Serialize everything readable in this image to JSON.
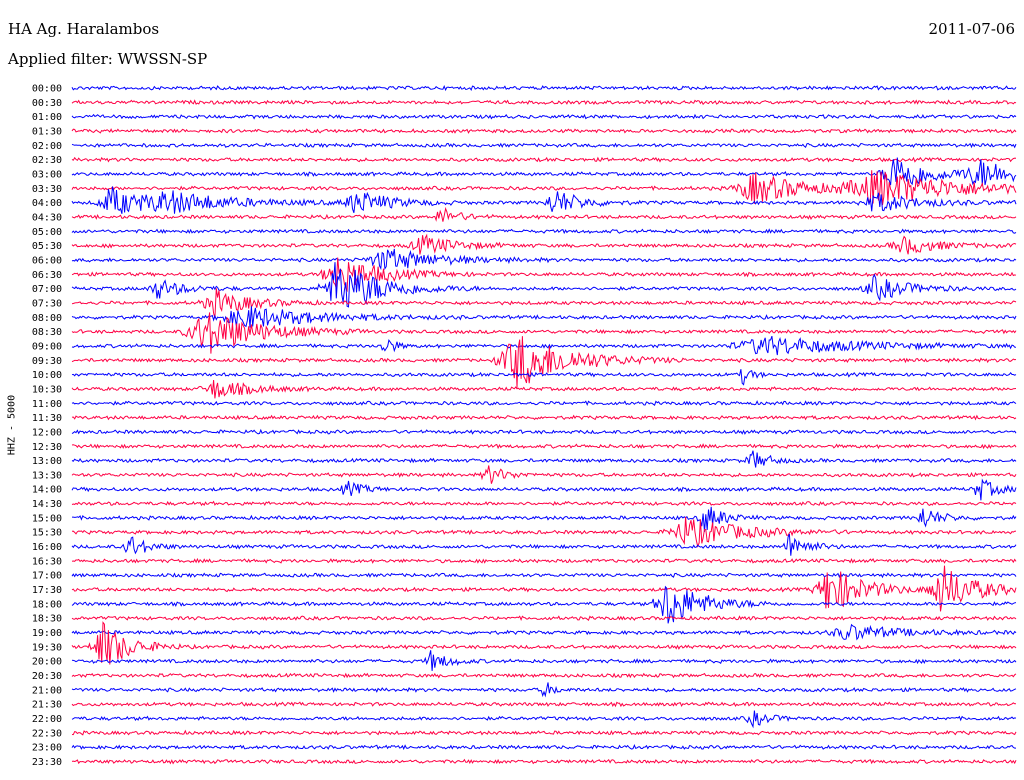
{
  "header": {
    "station": "HA Ag. Haralambos",
    "date": "2011-07-06",
    "filter": "Applied filter: WWSSN-SP"
  },
  "chart_data": {
    "type": "line",
    "title": "HA Ag. Haralambos",
    "ylabel": "HHZ - 5000",
    "row_labels": [
      "00:00",
      "00:30",
      "01:00",
      "01:30",
      "02:00",
      "02:30",
      "03:00",
      "03:30",
      "04:00",
      "04:30",
      "05:00",
      "05:30",
      "06:00",
      "06:30",
      "07:00",
      "07:30",
      "08:00",
      "08:30",
      "09:00",
      "09:30",
      "10:00",
      "10:30",
      "11:00",
      "11:30",
      "12:00",
      "12:30",
      "13:00",
      "13:30",
      "14:00",
      "14:30",
      "15:00",
      "15:30",
      "16:00",
      "16:30",
      "17:00",
      "17:30",
      "18:00",
      "18:30",
      "19:00",
      "19:30",
      "20:00",
      "20:30",
      "21:00",
      "21:30",
      "22:00",
      "22:30",
      "23:00",
      "23:30"
    ],
    "colors": [
      "#0000ff",
      "#ff0044"
    ],
    "x_minutes_per_row": 30,
    "events": [
      {
        "row": 6,
        "t": 0.87,
        "amp": 22,
        "dur": 0.04
      },
      {
        "row": 6,
        "t": 0.96,
        "amp": 14,
        "dur": 0.05
      },
      {
        "row": 7,
        "t": 0.72,
        "amp": 16,
        "dur": 0.06
      },
      {
        "row": 7,
        "t": 0.85,
        "amp": 18,
        "dur": 0.1
      },
      {
        "row": 8,
        "t": 0.04,
        "amp": 16,
        "dur": 0.04
      },
      {
        "row": 8,
        "t": 0.1,
        "amp": 10,
        "dur": 0.08
      },
      {
        "row": 8,
        "t": 0.3,
        "amp": 12,
        "dur": 0.04
      },
      {
        "row": 8,
        "t": 0.51,
        "amp": 14,
        "dur": 0.03
      },
      {
        "row": 8,
        "t": 0.85,
        "amp": 10,
        "dur": 0.05
      },
      {
        "row": 9,
        "t": 0.39,
        "amp": 10,
        "dur": 0.02
      },
      {
        "row": 11,
        "t": 0.37,
        "amp": 10,
        "dur": 0.04
      },
      {
        "row": 11,
        "t": 0.88,
        "amp": 9,
        "dur": 0.04
      },
      {
        "row": 12,
        "t": 0.33,
        "amp": 12,
        "dur": 0.06
      },
      {
        "row": 13,
        "t": 0.28,
        "amp": 20,
        "dur": 0.05
      },
      {
        "row": 14,
        "t": 0.09,
        "amp": 10,
        "dur": 0.03
      },
      {
        "row": 14,
        "t": 0.28,
        "amp": 30,
        "dur": 0.05
      },
      {
        "row": 14,
        "t": 0.85,
        "amp": 12,
        "dur": 0.04
      },
      {
        "row": 15,
        "t": 0.15,
        "amp": 14,
        "dur": 0.04
      },
      {
        "row": 16,
        "t": 0.18,
        "amp": 12,
        "dur": 0.08
      },
      {
        "row": 17,
        "t": 0.14,
        "amp": 24,
        "dur": 0.06
      },
      {
        "row": 18,
        "t": 0.33,
        "amp": 14,
        "dur": 0.01
      },
      {
        "row": 18,
        "t": 0.73,
        "amp": 10,
        "dur": 0.1
      },
      {
        "row": 19,
        "t": 0.47,
        "amp": 30,
        "dur": 0.06
      },
      {
        "row": 20,
        "t": 0.71,
        "amp": 10,
        "dur": 0.01
      },
      {
        "row": 21,
        "t": 0.15,
        "amp": 10,
        "dur": 0.04
      },
      {
        "row": 26,
        "t": 0.72,
        "amp": 10,
        "dur": 0.02
      },
      {
        "row": 27,
        "t": 0.44,
        "amp": 10,
        "dur": 0.02
      },
      {
        "row": 28,
        "t": 0.29,
        "amp": 8,
        "dur": 0.02
      },
      {
        "row": 28,
        "t": 0.96,
        "amp": 12,
        "dur": 0.02
      },
      {
        "row": 30,
        "t": 0.67,
        "amp": 16,
        "dur": 0.02
      },
      {
        "row": 30,
        "t": 0.9,
        "amp": 12,
        "dur": 0.02
      },
      {
        "row": 31,
        "t": 0.65,
        "amp": 16,
        "dur": 0.06
      },
      {
        "row": 32,
        "t": 0.06,
        "amp": 12,
        "dur": 0.02
      },
      {
        "row": 32,
        "t": 0.76,
        "amp": 14,
        "dur": 0.02
      },
      {
        "row": 35,
        "t": 0.8,
        "amp": 26,
        "dur": 0.04
      },
      {
        "row": 35,
        "t": 0.92,
        "amp": 26,
        "dur": 0.04
      },
      {
        "row": 36,
        "t": 0.63,
        "amp": 26,
        "dur": 0.04
      },
      {
        "row": 38,
        "t": 0.82,
        "amp": 8,
        "dur": 0.06
      },
      {
        "row": 39,
        "t": 0.03,
        "amp": 28,
        "dur": 0.03
      },
      {
        "row": 40,
        "t": 0.38,
        "amp": 10,
        "dur": 0.02
      },
      {
        "row": 42,
        "t": 0.5,
        "amp": 10,
        "dur": 0.01
      },
      {
        "row": 44,
        "t": 0.72,
        "amp": 8,
        "dur": 0.02
      }
    ]
  }
}
